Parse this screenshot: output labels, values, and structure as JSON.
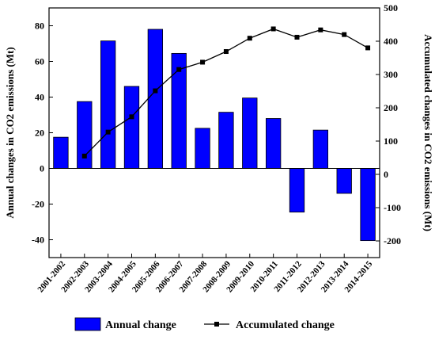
{
  "chart_data": {
    "type": "bar",
    "categories": [
      "2001-2002",
      "2002-2003",
      "2003-2004",
      "2004-2005",
      "2005-2006",
      "2006-2007",
      "2007-2008",
      "2008-2009",
      "2009-2010",
      "2010-2011",
      "2011-2012",
      "2012-2013",
      "2013-2014",
      "2014-2015"
    ],
    "series": [
      {
        "name": "Annual change",
        "type": "bar",
        "axis": "left",
        "color": "#0000ff",
        "values": [
          17.5,
          37.5,
          71.5,
          46,
          78,
          64.5,
          22.5,
          31.5,
          39.5,
          28,
          -24.5,
          21.5,
          -14,
          -40.5
        ]
      },
      {
        "name": "Accumulated change",
        "type": "line",
        "axis": "right",
        "color": "#000000",
        "marker": "square",
        "values": [
          null,
          55,
          127,
          173,
          251,
          315,
          337,
          369,
          409,
          437,
          412,
          434,
          420,
          380
        ]
      }
    ],
    "ylabel": "Annual changes in CO2 emissions (Mt)",
    "y2label": "Accumulated changes in CO2 emissions (Mt)",
    "ylim": [
      -50,
      90
    ],
    "y2lim": [
      -250,
      500
    ],
    "yticks": [
      -40,
      -20,
      0,
      20,
      40,
      60,
      80
    ],
    "y2ticks": [
      -200,
      -100,
      0,
      100,
      200,
      300,
      400,
      500
    ],
    "legend_position": "bottom",
    "grid": false
  }
}
